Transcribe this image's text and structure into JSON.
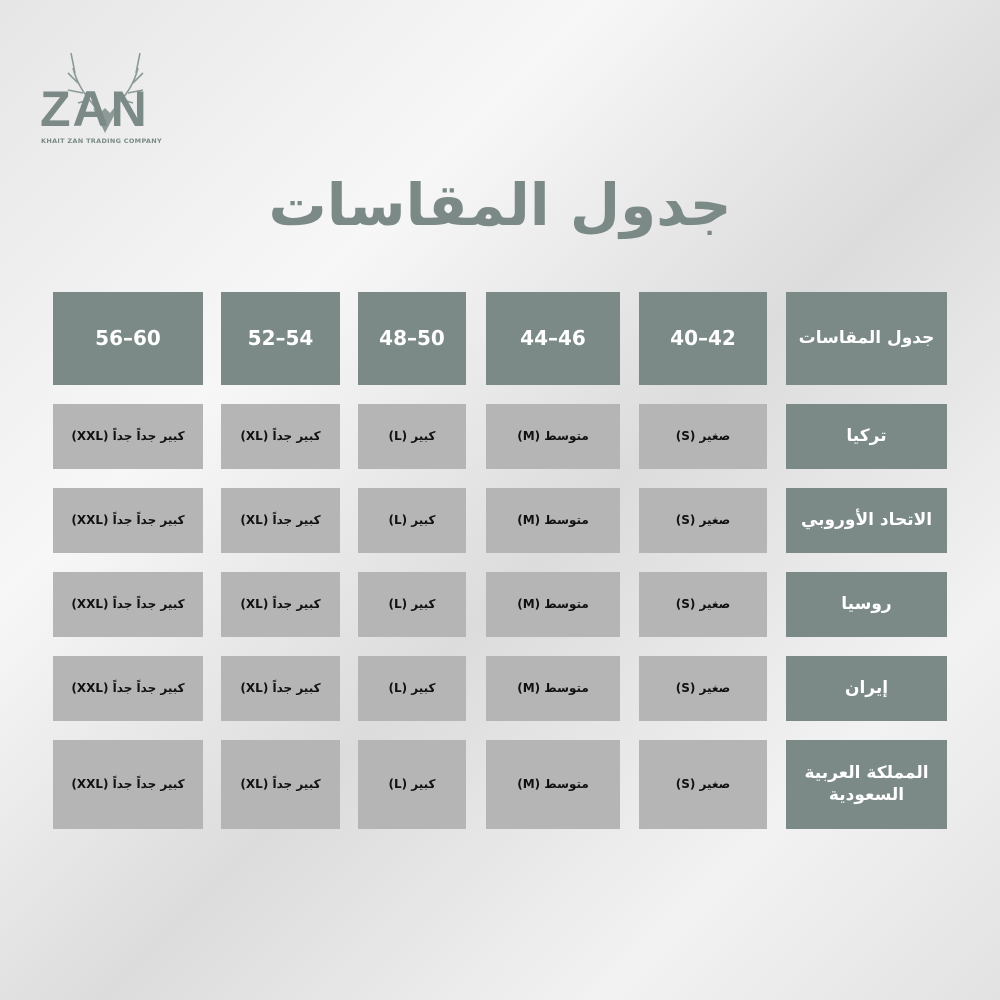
{
  "logo": {
    "brand": "ZAN",
    "subtitle": "KHAIT ZAN TRADING COMPANY",
    "color": "#7b8a87"
  },
  "title": "جدول المقاسات",
  "colors": {
    "header": "#7b8a87",
    "body": "#b5b5b5"
  },
  "table": {
    "corner": "جدول المقاسات",
    "columns": [
      "42–40",
      "46–44",
      "50–48",
      "54–52",
      "60–56"
    ],
    "rows": [
      {
        "label": "تركيا",
        "cells": [
          "صغير (S)",
          "متوسط (M)",
          "كبير (L)",
          "كبير جداً (XL)",
          "كبير جداً جداً (XXL)"
        ]
      },
      {
        "label": "الاتحاد الأوروبي",
        "cells": [
          "صغير (S)",
          "متوسط (M)",
          "كبير (L)",
          "كبير جداً (XL)",
          "كبير جداً جداً (XXL)"
        ]
      },
      {
        "label": "روسيا",
        "cells": [
          "صغير (S)",
          "متوسط (M)",
          "كبير (L)",
          "كبير جداً (XL)",
          "كبير جداً جداً (XXL)"
        ]
      },
      {
        "label": "إيران",
        "cells": [
          "صغير (S)",
          "متوسط (M)",
          "كبير (L)",
          "كبير جداً (XL)",
          "كبير جداً جداً (XXL)"
        ]
      },
      {
        "label": "المملكة العربية السعودية",
        "cells": [
          "صغير (S)",
          "متوسط (M)",
          "كبير (L)",
          "كبير جداً (XL)",
          "كبير جداً جداً (XXL)"
        ]
      }
    ]
  }
}
